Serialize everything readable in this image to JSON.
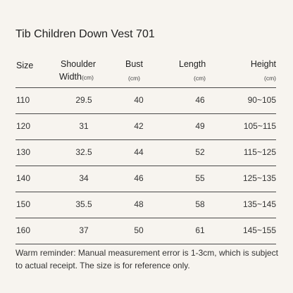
{
  "title": "Tib Children Down Vest 701",
  "headers": {
    "size": "Size",
    "shoulder_line1": "Shoulder",
    "shoulder_line2": "Width",
    "shoulder_unit": "(cm)",
    "bust": "Bust",
    "bust_unit": "(cm)",
    "length": "Length",
    "length_unit": "(cm)",
    "height": "Height",
    "height_unit": "(cm)"
  },
  "rows": [
    {
      "size": "110",
      "shoulder": "29.5",
      "bust": "40",
      "length": "46",
      "height": "90~105"
    },
    {
      "size": "120",
      "shoulder": "31",
      "bust": "42",
      "length": "49",
      "height": "105~115"
    },
    {
      "size": "130",
      "shoulder": "32.5",
      "bust": "44",
      "length": "52",
      "height": "115~125"
    },
    {
      "size": "140",
      "shoulder": "34",
      "bust": "46",
      "length": "55",
      "height": "125~135"
    },
    {
      "size": "150",
      "shoulder": "35.5",
      "bust": "48",
      "length": "58",
      "height": "135~145"
    },
    {
      "size": "160",
      "shoulder": "37",
      "bust": "50",
      "length": "61",
      "height": "145~155"
    }
  ],
  "note": "Warm reminder: Manual measurement error is 1-3cm, which is subject to actual receipt. The size is for reference only."
}
